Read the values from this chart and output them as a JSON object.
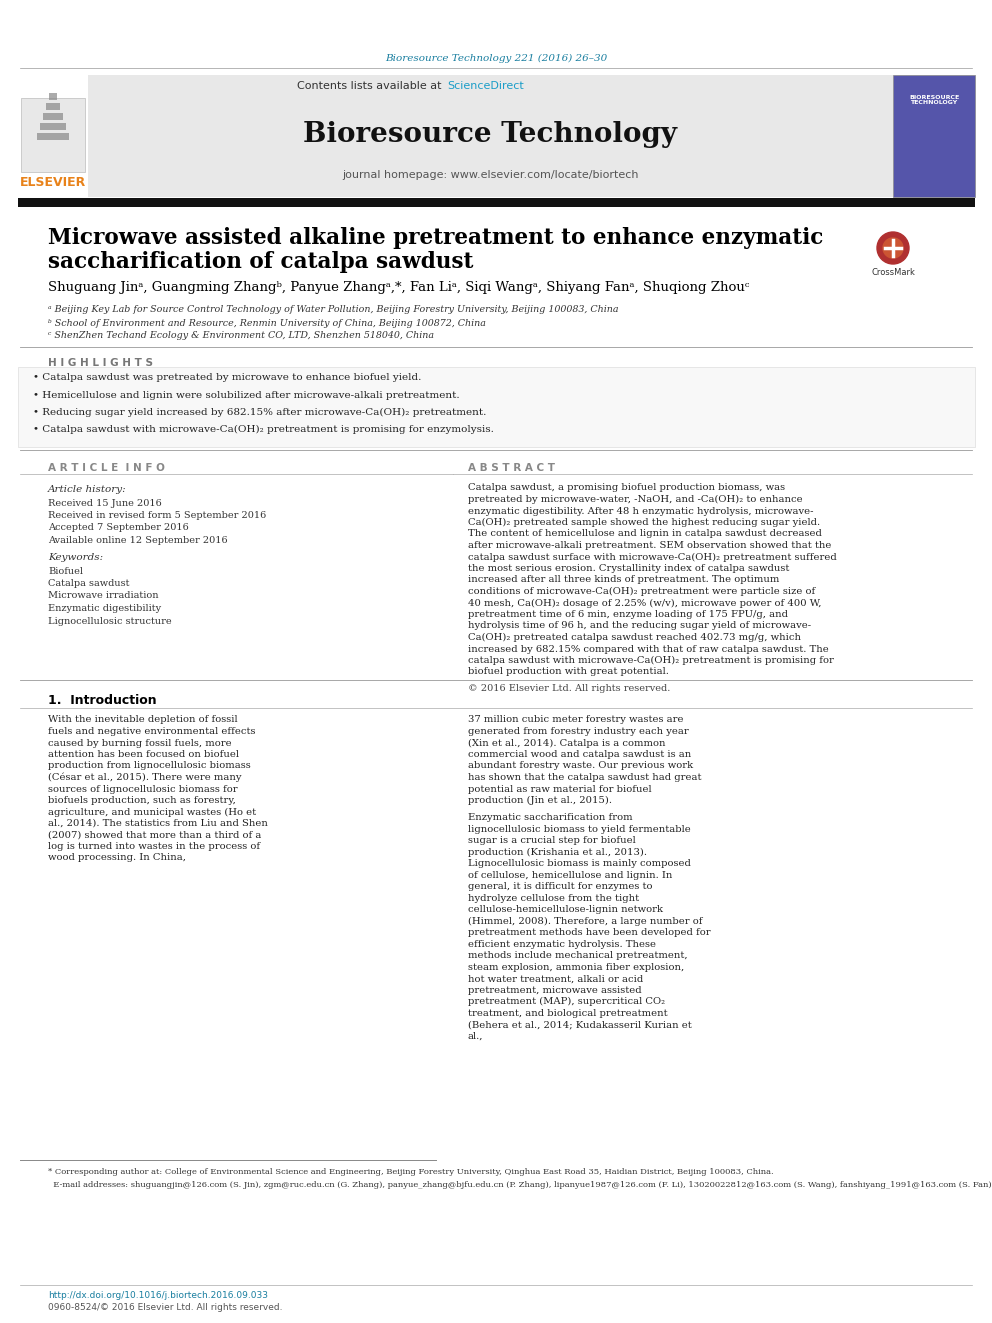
{
  "page_bg": "#ffffff",
  "top_journal_text": "Bioresource Technology 221 (2016) 26–30",
  "top_journal_color": "#1a7fa0",
  "header_bg": "#e8e8e8",
  "header_contents_text": "Contents lists available at ",
  "header_sciencedirect_text": "ScienceDirect",
  "header_sciencedirect_color": "#1a9dc8",
  "header_journal_name": "Bioresource Technology",
  "header_homepage_text": "journal homepage: www.elsevier.com/locate/biortech",
  "divider_color": "#000000",
  "title_line1": "Microwave assisted alkaline pretreatment to enhance enzymatic",
  "title_line2": "saccharification of catalpa sawdust",
  "title_fontsize": 16,
  "highlights_title": "H I G H L I G H T S",
  "highlights": [
    "Catalpa sawdust was pretreated by microwave to enhance biofuel yield.",
    "Hemicellulose and lignin were solubilized after microwave-alkali pretreatment.",
    "Reducing sugar yield increased by 682.15% after microwave-Ca(OH)₂ pretreatment.",
    "Catalpa sawdust with microwave-Ca(OH)₂ pretreatment is promising for enzymolysis."
  ],
  "article_info_title": "A R T I C L E  I N F O",
  "article_history_label": "Article history:",
  "article_history": [
    "Received 15 June 2016",
    "Received in revised form 5 September 2016",
    "Accepted 7 September 2016",
    "Available online 12 September 2016"
  ],
  "keywords_label": "Keywords:",
  "keywords": [
    "Biofuel",
    "Catalpa sawdust",
    "Microwave irradiation",
    "Enzymatic digestibility",
    "Lignocellulosic structure"
  ],
  "abstract_title": "A B S T R A C T",
  "abstract_text": "Catalpa sawdust, a promising biofuel production biomass, was pretreated by microwave-water, -NaOH, and -Ca(OH)₂ to enhance enzymatic digestibility. After 48 h enzymatic hydrolysis, microwave-Ca(OH)₂ pretreated sample showed the highest reducing sugar yield. The content of hemicellulose and lignin in catalpa sawdust decreased after microwave-alkali pretreatment. SEM observation showed that the catalpa sawdust surface with microwave-Ca(OH)₂ pretreatment suffered the most serious erosion. Crystallinity index of catalpa sawdust increased after all three kinds of pretreatment. The optimum conditions of microwave-Ca(OH)₂ pretreatment were particle size of 40 mesh, Ca(OH)₂ dosage of 2.25% (w/v), microwave power of 400 W, pretreatment time of 6 min, enzyme loading of 175 FPU/g, and hydrolysis time of 96 h, and the reducing sugar yield of microwave-Ca(OH)₂ pretreated catalpa sawdust reached 402.73 mg/g, which increased by 682.15% compared with that of raw catalpa sawdust. The catalpa sawdust with microwave-Ca(OH)₂ pretreatment is promising for biofuel production with great potential.",
  "copyright_text": "© 2016 Elsevier Ltd. All rights reserved.",
  "intro_title": "1.  Introduction",
  "intro_col1": "With the inevitable depletion of fossil fuels and negative environmental effects caused by burning fossil fuels, more attention has been focused on biofuel production from lignocellulosic biomass (César et al., 2015). There were many sources of lignocellulosic biomass for biofuels production, such as forestry, agriculture, and municipal wastes (Ho et al., 2014). The statistics from Liu and Shen (2007) showed that more than a third of a log is turned into wastes in the process of wood processing. In China,",
  "intro_col2": "37 million cubic meter forestry wastes are generated from forestry industry each year (Xin et al., 2014). Catalpa is a common commercial wood and catalpa sawdust is an abundant forestry waste. Our previous work has shown that the catalpa sawdust had great potential as raw material for biofuel production (Jin et al., 2015).\n    Enzymatic saccharification from lignocellulosic biomass to yield fermentable sugar is a crucial step for biofuel production (Krishania et al., 2013). Lignocellulosic biomass is mainly composed of cellulose, hemicellulose and lignin. In general, it is difficult for enzymes to hydrolyze cellulose from the tight cellulose-hemicellulose-lignin network (Himmel, 2008). Therefore, a large number of pretreatment methods have been developed for efficient enzymatic hydrolysis. These methods include mechanical pretreatment, steam explosion, ammonia fiber explosion, hot water treatment, alkali or acid pretreatment, microwave assisted pretreatment (MAP), supercritical CO₂ treatment, and biological pretreatment (Behera et al., 2014; Kudakasseril Kurian et al.,",
  "footer_doi": "http://dx.doi.org/10.1016/j.biortech.2016.09.033",
  "footer_issn": "0960-8524/© 2016 Elsevier Ltd. All rights reserved.",
  "footnote_corr": "* Corresponding author at: College of Environmental Science and Engineering, Beijing Forestry University, Qinghua East Road 35, Haidian District, Beijing 100083, China.",
  "footnote_email": "  E-mail addresses: shuguangjin@126.com (S. Jin), zgm@ruc.edu.cn (G. Zhang), panyue_zhang@bjfu.edu.cn (P. Zhang), lipanyue1987@126.com (F. Li), 13020022812@163.com (S. Wang), fanshiyang_1991@163.com (S. Fan), zhoushiqiong@satechand.com.cn (S. Zhou).",
  "elsevier_color": "#e8821a",
  "header_text_color": "#333333"
}
